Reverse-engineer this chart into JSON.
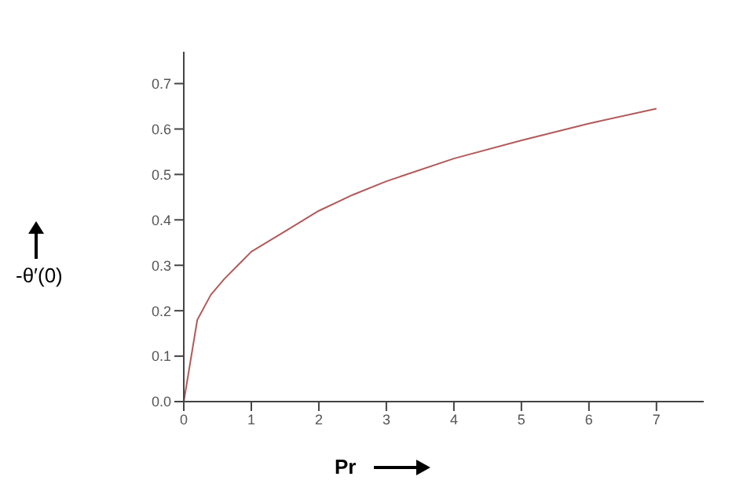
{
  "chart_data": {
    "type": "line",
    "xlabel": "Pr",
    "ylabel": "-θ′(0)",
    "x": [
      0,
      0.2,
      0.4,
      0.6,
      0.8,
      1,
      1.5,
      2,
      2.5,
      3,
      4,
      5,
      6,
      7
    ],
    "series": [
      {
        "color": "#b25a5a",
        "values": [
          0,
          0.18,
          0.235,
          0.27,
          0.3,
          0.33,
          0.375,
          0.42,
          0.455,
          0.485,
          0.535,
          0.575,
          0.612,
          0.645
        ]
      }
    ],
    "xlim": [
      0,
      7.7
    ],
    "xticks": [
      0,
      1,
      2,
      3,
      4,
      5,
      6,
      7
    ],
    "ylim": [
      0,
      0.77
    ],
    "yticks": [
      {
        "value": 0,
        "label": "0.0"
      },
      0.1,
      0.2,
      0.3,
      0.4,
      0.5,
      0.6,
      0.7
    ],
    "grid": false,
    "marker": "none",
    "line_style": "solid",
    "legend": false
  }
}
